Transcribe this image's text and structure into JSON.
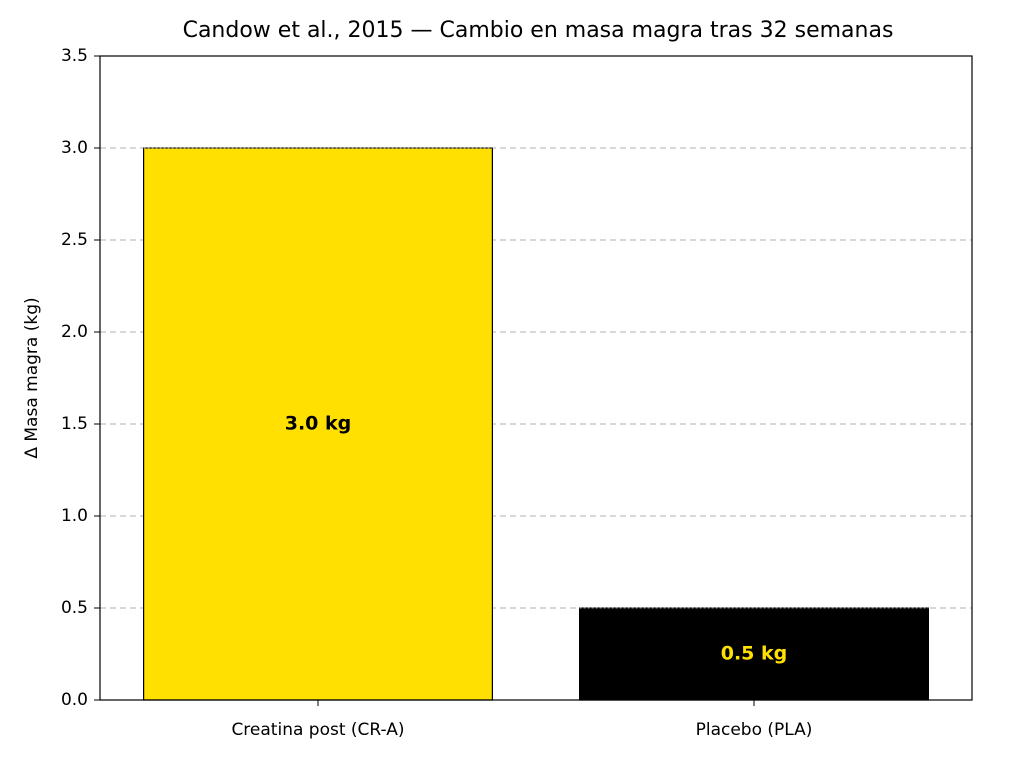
{
  "chart_data": {
    "type": "bar",
    "title": "Candow et al., 2015 — Cambio en masa magra tras 32 semanas",
    "y_label": "Δ Masa magra (kg)",
    "categories": [
      "Creatina post (CR-A)",
      "Placebo (PLA)"
    ],
    "values": [
      3.0,
      0.5
    ],
    "value_labels": [
      "3.0 kg",
      "0.5 kg"
    ],
    "colors": [
      "#ffe000",
      "#000000"
    ],
    "label_colors": [
      "#000000",
      "#ffe000"
    ],
    "edge_color": "#000000",
    "ylim": [
      0,
      3.5
    ],
    "yticks": [
      {
        "value": 0,
        "label": "0.0"
      },
      0.5,
      {
        "value": 1,
        "label": "1.0"
      },
      1.5,
      {
        "value": 2,
        "label": "2.0"
      },
      2.5,
      {
        "value": 3,
        "label": "3.0"
      },
      3.5
    ],
    "grid": true
  }
}
